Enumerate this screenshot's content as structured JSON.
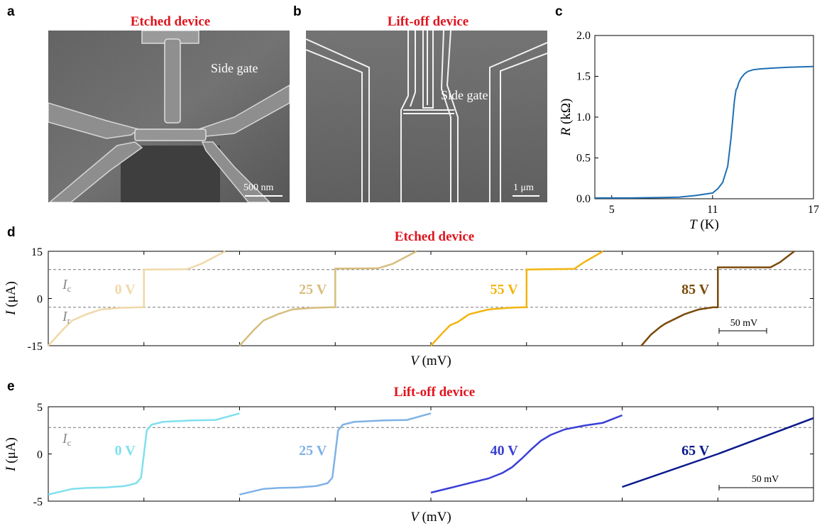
{
  "panels": {
    "a": {
      "letter": "a",
      "title": "Etched device",
      "gate_label": "Side gate",
      "scale_bar": "500 nm"
    },
    "b": {
      "letter": "b",
      "title": "Lift-off device",
      "gate_label": "Side gate",
      "scale_bar": "1 μm"
    },
    "c": {
      "letter": "c"
    },
    "d": {
      "letter": "d",
      "title": "Etched device",
      "ic_label": "I",
      "ic_sub": "c",
      "ir_label": "I",
      "ir_sub": "r",
      "scale_bar": "50 mV"
    },
    "e": {
      "letter": "e",
      "title": "Lift-off device",
      "ic_label": "I",
      "ic_sub": "c",
      "scale_bar": "50 mV"
    }
  },
  "colors": {
    "title_red": "#e0141e",
    "rt_curve": "#1f6fb4"
  },
  "chart_data": [
    {
      "id": "c",
      "type": "line",
      "title": "",
      "xlabel_var": "T",
      "xlabel_unit": " (K)",
      "ylabel_var": "R",
      "ylabel_unit": " (kΩ)",
      "xlim": [
        4,
        17
      ],
      "ylim": [
        0,
        2.0
      ],
      "xticks": [
        "5",
        "11",
        "17"
      ],
      "xtick_values": [
        5,
        11,
        17
      ],
      "yticks": [
        "0.0",
        "0.5",
        "1.0",
        "1.5",
        "2.0"
      ],
      "ytick_values": [
        0,
        0.5,
        1.0,
        1.5,
        2.0
      ],
      "x": [
        4,
        6,
        8,
        9,
        10,
        11,
        11.3,
        11.6,
        11.9,
        12.1,
        12.3,
        12.4,
        12.45,
        12.5,
        12.55,
        12.7,
        12.9,
        13.1,
        13.4,
        13.8,
        14.5,
        15.5,
        17
      ],
      "y": [
        0.01,
        0.01,
        0.015,
        0.02,
        0.04,
        0.07,
        0.12,
        0.2,
        0.4,
        0.75,
        1.2,
        1.34,
        1.35,
        1.38,
        1.42,
        1.48,
        1.53,
        1.56,
        1.58,
        1.59,
        1.6,
        1.61,
        1.62
      ]
    },
    {
      "id": "d",
      "type": "line",
      "title": "Etched device",
      "xlabel_var": "V",
      "xlabel_unit": " (mV)",
      "ylabel_var": "I",
      "ylabel_unit": " (μA)",
      "ylim": [
        -15,
        15
      ],
      "yticks": [
        "15",
        "0",
        "-15"
      ],
      "ytick_values": [
        15,
        0,
        -15
      ],
      "ic": 9.2,
      "ir": -2.8,
      "series": [
        {
          "name": "0 V",
          "color": "#f0d8a8",
          "x": [
            -100,
            -85,
            -75,
            -60,
            -45,
            -25,
            -5,
            0,
            0,
            45,
            60,
            85
          ],
          "y": [
            -15,
            -10,
            -7,
            -5,
            -3.5,
            -3,
            -2.8,
            -2.8,
            9.2,
            9.3,
            11,
            15
          ]
        },
        {
          "name": "25 V",
          "color": "#d7bd7e",
          "x": [
            -100,
            -85,
            -75,
            -60,
            -45,
            -25,
            -5,
            0,
            0,
            45,
            60,
            85
          ],
          "y": [
            -15,
            -10,
            -7,
            -5,
            -3.5,
            -3,
            -2.8,
            -2.8,
            9.5,
            9.6,
            11,
            15
          ]
        },
        {
          "name": "55 V",
          "color": "#f2b50f",
          "x": [
            -100,
            -88,
            -80,
            -72,
            -60,
            -40,
            -20,
            -5,
            0,
            0,
            50,
            60,
            80
          ],
          "y": [
            -15,
            -11,
            -8.5,
            -7.5,
            -5,
            -3.5,
            -3,
            -2.8,
            -2.8,
            9.2,
            9.4,
            11.5,
            15
          ]
        },
        {
          "name": "85 V",
          "color": "#7b4a0a",
          "x": [
            -80,
            -70,
            -60,
            -55,
            -35,
            -20,
            -5,
            0,
            0,
            55,
            65,
            80
          ],
          "y": [
            -15,
            -11.5,
            -9,
            -8,
            -5,
            -3.5,
            -2.8,
            -2.8,
            9.9,
            9.9,
            11.5,
            15
          ]
        }
      ]
    },
    {
      "id": "e",
      "type": "line",
      "title": "Lift-off device",
      "xlabel_var": "V",
      "xlabel_unit": " (mV)",
      "ylabel_var": "I",
      "ylabel_unit": " (μA)",
      "ylim": [
        -5,
        5
      ],
      "yticks": [
        "5",
        "0",
        "-5"
      ],
      "ytick_values": [
        5,
        0,
        -5
      ],
      "ic": 2.8,
      "series": [
        {
          "name": "0 V",
          "color": "#7fe0ee",
          "x": [
            -100,
            -75,
            -60,
            -40,
            -20,
            -8,
            -3,
            0,
            3,
            8,
            20,
            50,
            75,
            100
          ],
          "y": [
            -4.3,
            -3.7,
            -3.6,
            -3.55,
            -3.4,
            -3.1,
            -2.5,
            0,
            2.5,
            3.1,
            3.4,
            3.55,
            3.6,
            4.3
          ]
        },
        {
          "name": "25 V",
          "color": "#7fb2e6",
          "x": [
            -100,
            -75,
            -60,
            -40,
            -20,
            -8,
            -3,
            0,
            3,
            8,
            20,
            50,
            75,
            100
          ],
          "y": [
            -4.3,
            -3.7,
            -3.6,
            -3.55,
            -3.4,
            -3.1,
            -2.5,
            0,
            2.5,
            3.1,
            3.4,
            3.55,
            3.6,
            4.3
          ]
        },
        {
          "name": "40 V",
          "color": "#3a3fd6",
          "x": [
            -100,
            -80,
            -60,
            -40,
            -25,
            -15,
            -5,
            0,
            5,
            15,
            25,
            40,
            60,
            80,
            100
          ],
          "y": [
            -4.1,
            -3.6,
            -3.1,
            -2.6,
            -2.0,
            -1.4,
            -0.5,
            0,
            0.5,
            1.4,
            2.0,
            2.6,
            3.0,
            3.3,
            4.1
          ]
        },
        {
          "name": "65 V",
          "color": "#0b1a8c",
          "x": [
            -100,
            0,
            100
          ],
          "y": [
            -3.5,
            0,
            3.8
          ]
        }
      ]
    }
  ]
}
